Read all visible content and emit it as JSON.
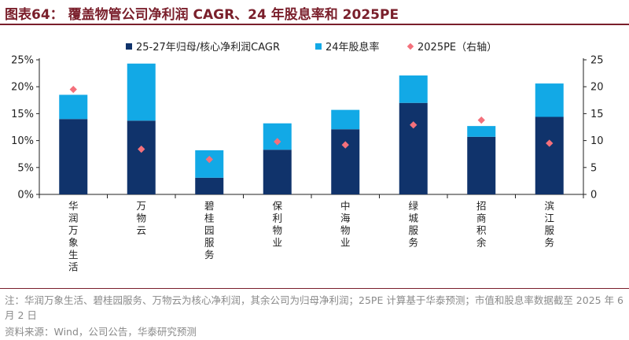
{
  "title": "图表64：  覆盖物管公司净利润 CAGR、24 年股息率和 2025PE",
  "note": "注：华润万象生活、碧桂园服务、万物云为核心净利润，其余公司为归母净利润；25PE 计算基于华泰预测；市值和股息率数据截至 2025 年 6 月 2 日",
  "source": "资料来源：Wind，公司公告，华泰研究预测",
  "colors": {
    "cagr": "#10336b",
    "dividend": "#12a9e6",
    "pe": "#f4707b",
    "title": "#7a1f2b"
  },
  "chart_data": {
    "type": "bar",
    "stacked": true,
    "categories": [
      "华润万象生活",
      "万物云",
      "碧桂园服务",
      "保利物业",
      "中海物业",
      "绿城服务",
      "招商积余",
      "滨江服务"
    ],
    "series": [
      {
        "name": "25-27年归母/核心净利润CAGR",
        "type": "bar",
        "axis": "left",
        "values": [
          14.0,
          13.7,
          3.1,
          8.3,
          12.1,
          17.0,
          10.7,
          14.4
        ]
      },
      {
        "name": "24年股息率",
        "type": "bar",
        "axis": "left",
        "values": [
          4.5,
          10.6,
          5.1,
          4.9,
          3.6,
          5.1,
          2.0,
          6.2
        ]
      },
      {
        "name": "2025PE（右轴）",
        "type": "scatter",
        "axis": "right",
        "values": [
          19.5,
          8.4,
          6.5,
          9.8,
          9.2,
          12.9,
          13.8,
          9.5
        ]
      }
    ],
    "y_left": {
      "min": 0,
      "max": 25,
      "ticks": [
        "0%",
        "5%",
        "10%",
        "15%",
        "20%",
        "25%"
      ]
    },
    "y_right": {
      "min": 0,
      "max": 25,
      "ticks": [
        "0",
        "5",
        "10",
        "15",
        "20",
        "25"
      ]
    },
    "legend_position": "top",
    "grid": false
  }
}
